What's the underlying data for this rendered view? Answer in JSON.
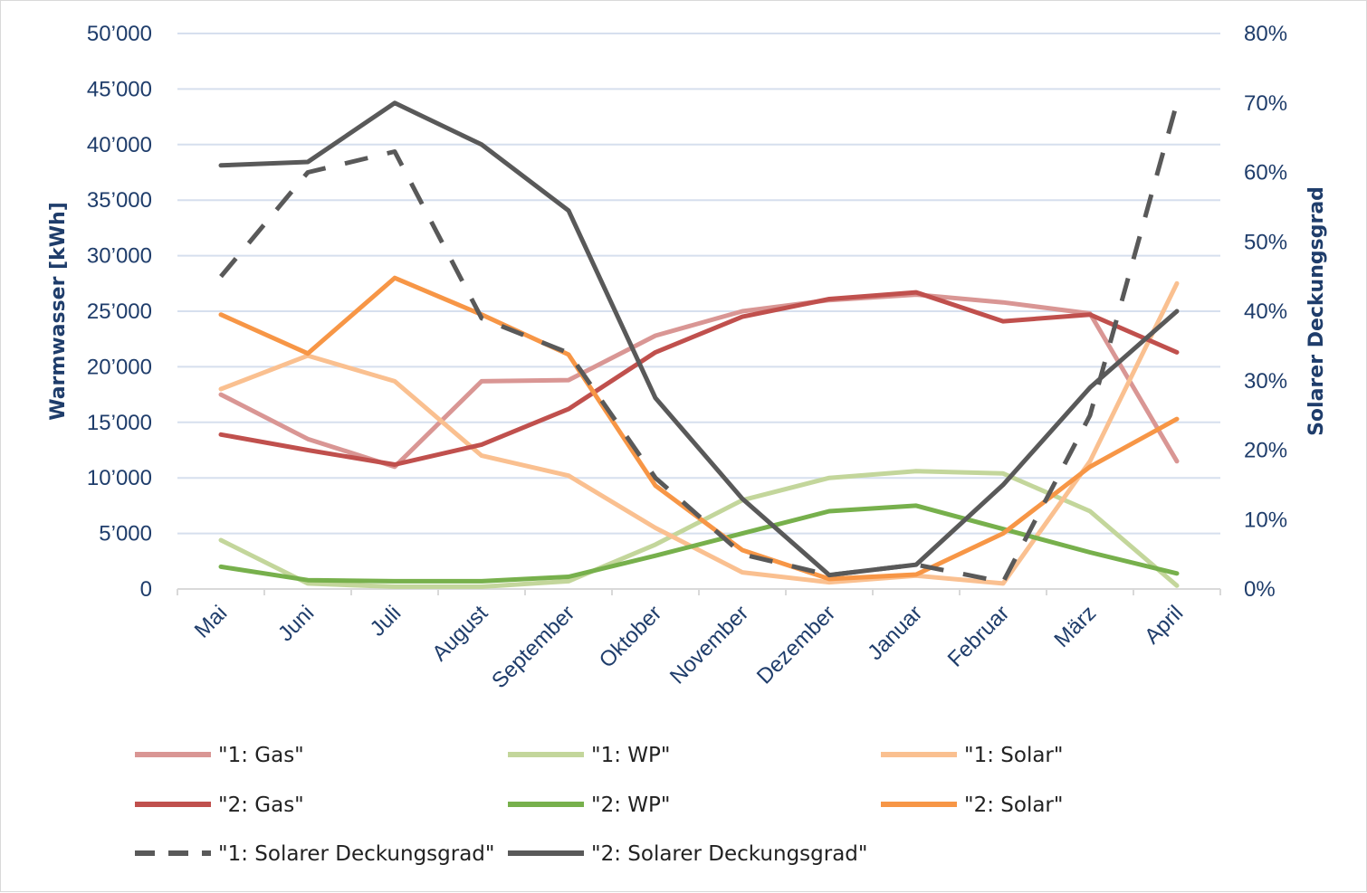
{
  "chart_data": {
    "type": "line",
    "categories": [
      "Mai",
      "Juni",
      "Juli",
      "August",
      "September",
      "Oktober",
      "November",
      "Dezember",
      "Januar",
      "Februar",
      "März",
      "April"
    ],
    "ylabel": "Warmwasser [kWh]",
    "y2label": "Solarer Deckungsgrad",
    "ylim": [
      0,
      50000
    ],
    "y2lim": [
      0,
      0.8
    ],
    "yticks": [
      "0",
      "5’000",
      "10’000",
      "15’000",
      "20’000",
      "25’000",
      "30’000",
      "35’000",
      "40’000",
      "45’000",
      "50’000"
    ],
    "y2ticks": [
      "0%",
      "10%",
      "20%",
      "30%",
      "40%",
      "50%",
      "60%",
      "70%",
      "80%"
    ],
    "grid": true,
    "legend_position": "bottom",
    "series": [
      {
        "name": "\"1: Gas\"",
        "axis": "left",
        "color": "#d99694",
        "dashed": false,
        "values": [
          17500,
          13500,
          11000,
          18700,
          18800,
          22800,
          25000,
          26000,
          26500,
          25800,
          24800,
          11500
        ]
      },
      {
        "name": "\"1: WP\"",
        "axis": "left",
        "color": "#c3d69b",
        "dashed": false,
        "values": [
          4400,
          500,
          200,
          200,
          700,
          4000,
          8000,
          10000,
          10600,
          10400,
          7000,
          300
        ]
      },
      {
        "name": "\"1: Solar\"",
        "axis": "left",
        "color": "#fac090",
        "dashed": false,
        "values": [
          18000,
          21000,
          18700,
          12000,
          10200,
          5500,
          1500,
          600,
          1200,
          500,
          11500,
          27500
        ]
      },
      {
        "name": "\"2: Gas\"",
        "axis": "left",
        "color": "#c0504d",
        "dashed": false,
        "values": [
          13900,
          12500,
          11200,
          13000,
          16200,
          21300,
          24500,
          26100,
          26700,
          24100,
          24700,
          21300
        ]
      },
      {
        "name": "\"2: WP\"",
        "axis": "left",
        "color": "#77b04c",
        "dashed": false,
        "values": [
          2000,
          800,
          700,
          700,
          1100,
          3000,
          5000,
          7000,
          7500,
          5400,
          3300,
          1400
        ]
      },
      {
        "name": "\"2: Solar\"",
        "axis": "left",
        "color": "#f79646",
        "dashed": false,
        "values": [
          24700,
          21200,
          28000,
          24700,
          21100,
          9300,
          3500,
          900,
          1300,
          5000,
          11000,
          15300
        ]
      },
      {
        "name": "\"1: Solarer Deckungsgrad\"",
        "axis": "right",
        "color": "#595959",
        "dashed": true,
        "values": [
          0.45,
          0.6,
          0.63,
          0.39,
          0.34,
          0.16,
          0.05,
          0.02,
          0.035,
          0.01,
          0.25,
          0.7
        ]
      },
      {
        "name": "\"2: Solarer Deckungsgrad\"",
        "axis": "right",
        "color": "#595959",
        "dashed": false,
        "values": [
          0.61,
          0.615,
          0.7,
          0.64,
          0.545,
          0.275,
          0.13,
          0.02,
          0.035,
          0.15,
          0.29,
          0.4
        ]
      }
    ]
  }
}
